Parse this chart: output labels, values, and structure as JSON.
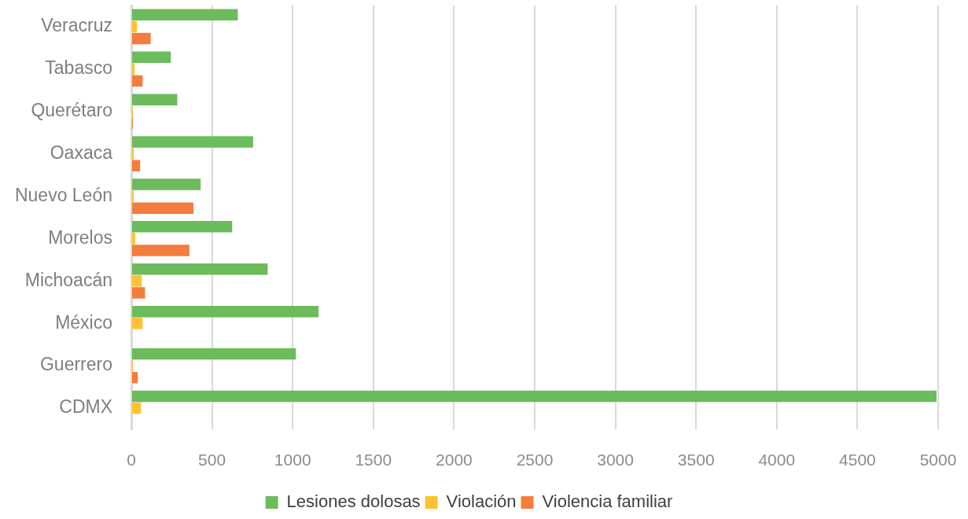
{
  "chart_data": {
    "type": "bar",
    "orientation": "horizontal",
    "categories": [
      "Veracruz",
      "Tabasco",
      "Querétaro",
      "Oaxaca",
      "Nuevo León",
      "Morelos",
      "Michoacán",
      "México",
      "Guerrero",
      "CDMX"
    ],
    "series": [
      {
        "name": "Lesiones dolosas",
        "color": "#6cbb5c",
        "values": [
          660,
          245,
          285,
          755,
          430,
          625,
          845,
          1160,
          1020,
          4990
        ]
      },
      {
        "name": "Violación",
        "color": "#fcc232",
        "values": [
          35,
          20,
          10,
          15,
          15,
          25,
          65,
          70,
          10,
          60
        ]
      },
      {
        "name": "Violencia familiar",
        "color": "#f47c3c",
        "values": [
          120,
          70,
          10,
          55,
          385,
          360,
          85,
          0,
          40,
          0
        ]
      }
    ],
    "xlim": [
      0,
      5000
    ],
    "xticks": [
      0,
      500,
      1000,
      1500,
      2000,
      2500,
      3000,
      3500,
      4000,
      4500,
      5000
    ],
    "grid": "x",
    "legend": "bottom"
  }
}
